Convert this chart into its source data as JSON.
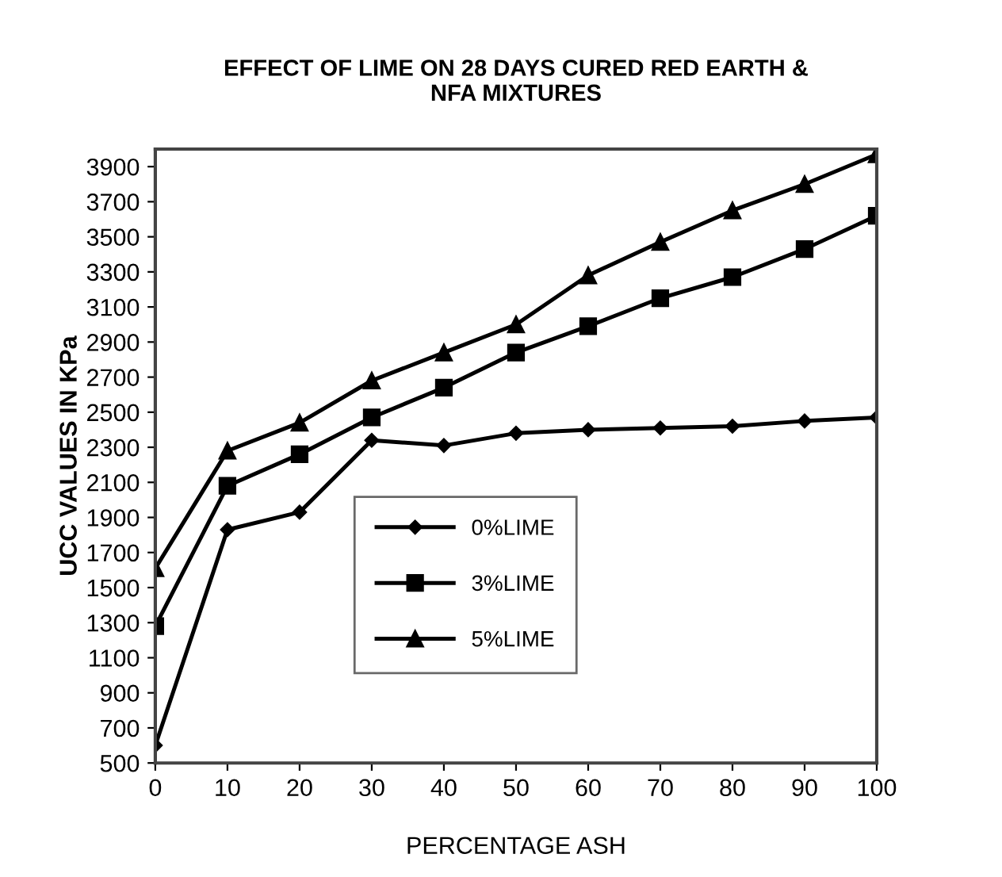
{
  "chart_data": {
    "type": "line",
    "title": "EFFECT OF LIME ON 28 DAYS CURED RED EARTH &\nNFA MIXTURES",
    "xlabel": "PERCENTAGE ASH",
    "ylabel": "UCC VALUES IN KPa",
    "x": [
      0,
      10,
      20,
      30,
      40,
      50,
      60,
      70,
      80,
      90,
      100
    ],
    "series": [
      {
        "name": "0%LIME",
        "color": "#000000",
        "marker": "diamond",
        "values": [
          600,
          1830,
          1930,
          2340,
          2310,
          2380,
          2400,
          2410,
          2420,
          2450,
          2470
        ]
      },
      {
        "name": "3%LIME",
        "color": "#000000",
        "marker": "square",
        "values": [
          1280,
          2080,
          2260,
          2470,
          2640,
          2840,
          2990,
          3150,
          3270,
          3430,
          3620
        ]
      },
      {
        "name": "5%LIME",
        "color": "#000000",
        "marker": "triangle",
        "values": [
          1610,
          2280,
          2440,
          2680,
          2840,
          3000,
          3280,
          3470,
          3650,
          3800,
          3970
        ]
      }
    ],
    "xlim": [
      0,
      100
    ],
    "xticks": [
      0,
      10,
      20,
      30,
      40,
      50,
      60,
      70,
      80,
      90,
      100
    ],
    "ylim": [
      500,
      4000
    ],
    "yticks": [
      500,
      700,
      900,
      1100,
      1300,
      1500,
      1700,
      1900,
      2100,
      2300,
      2500,
      2700,
      2900,
      3100,
      3300,
      3500,
      3700,
      3900
    ],
    "grid": false,
    "legend": "center",
    "line_style": "solid"
  }
}
